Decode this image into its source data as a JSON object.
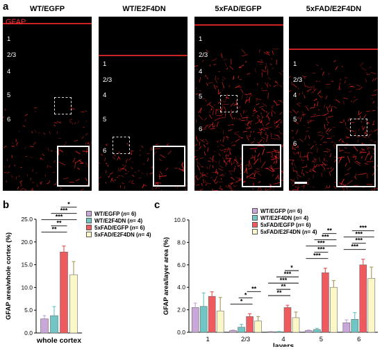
{
  "panel_labels": {
    "a": "a",
    "b": "b",
    "c": "c"
  },
  "micrographs": {
    "stain_label": "GFAP",
    "stain_color": "#ff2a2a",
    "panels": [
      {
        "title": "WT/EGFP",
        "layers": [
          "1",
          "2/3",
          "4",
          "5",
          "6"
        ]
      },
      {
        "title": "WT/E2F4DN",
        "layers": [
          "1",
          "2/3",
          "4",
          "5",
          "6"
        ]
      },
      {
        "title": "5xFAD/EGFP",
        "layers": [
          "1",
          "2/3",
          "4",
          "5",
          "6"
        ]
      },
      {
        "title": "5xFAD/E2F4DN",
        "layers": [
          "1",
          "2/3",
          "4",
          "5",
          "6"
        ]
      }
    ]
  },
  "legend": [
    {
      "label_prefix": "WT/EGFP (",
      "n_italic": "n",
      "label_suffix": " = 6)",
      "color": "#c9a7d9"
    },
    {
      "label_prefix": "WT/E2F4DN (",
      "n_italic": "n",
      "label_suffix": " = 4)",
      "color": "#6fc6c4"
    },
    {
      "label_prefix": "5xFAD/EGFP (",
      "n_italic": "n",
      "label_suffix": " = 6)",
      "color": "#ef5a5e"
    },
    {
      "label_prefix": "5xFAD/E2F4DN (",
      "n_italic": "n",
      "label_suffix": " = 4)",
      "color": "#fbf7c6"
    }
  ],
  "chart_data": [
    {
      "type": "bar",
      "panel": "b",
      "categories": [
        "whole cortex"
      ],
      "series": [
        {
          "name": "WT/EGFP",
          "values": [
            3.1
          ],
          "errors": [
            0.7
          ]
        },
        {
          "name": "WT/E2F4DN",
          "values": [
            3.8
          ],
          "errors": [
            2.0
          ]
        },
        {
          "name": "5xFAD/EGFP",
          "values": [
            17.8
          ],
          "errors": [
            1.3
          ]
        },
        {
          "name": "5xFAD/E2F4DN",
          "values": [
            12.8
          ],
          "errors": [
            2.9
          ]
        }
      ],
      "xlabel": "whole cortex",
      "ylabel": "GFAP area/whole cortex (%)",
      "ylim": [
        0,
        25
      ],
      "yticks": [
        "0.0",
        "5.0",
        "10.0",
        "15.0",
        "20.0",
        "25.0"
      ],
      "significance": [
        {
          "from": 0,
          "to": 2,
          "label": "**"
        },
        {
          "from": 1,
          "to": 2,
          "label": "**"
        },
        {
          "from": 0,
          "to": 3,
          "label": "***"
        },
        {
          "from": 1,
          "to": 3,
          "label": "***"
        },
        {
          "from": 2,
          "to": 3,
          "label": "*"
        }
      ]
    },
    {
      "type": "bar",
      "panel": "c",
      "categories": [
        "1",
        "2/3",
        "4",
        "5",
        "6"
      ],
      "series": [
        {
          "name": "WT/EGFP",
          "values": [
            2.2,
            0.15,
            0.05,
            0.15,
            0.85
          ],
          "errors": [
            0.4,
            0.05,
            0.03,
            0.05,
            0.25
          ]
        },
        {
          "name": "WT/E2F4DN",
          "values": [
            2.3,
            0.45,
            0.05,
            0.25,
            1.15
          ],
          "errors": [
            1.2,
            0.25,
            0.03,
            0.1,
            0.6
          ]
        },
        {
          "name": "5xFAD/EGFP",
          "values": [
            3.2,
            1.4,
            2.2,
            5.3,
            6.0
          ],
          "errors": [
            0.4,
            0.25,
            0.2,
            0.4,
            0.5
          ]
        },
        {
          "name": "5xFAD/E2F4DN",
          "values": [
            1.9,
            1.0,
            1.3,
            4.0,
            4.8
          ],
          "errors": [
            1.2,
            0.4,
            0.5,
            0.6,
            1.0
          ]
        }
      ],
      "xlabel": "layers",
      "ylabel": "GFAP area/layer area (%)",
      "ylim": [
        0,
        10
      ],
      "yticks": [
        "0.0",
        "2.0",
        "4.0",
        "6.0",
        "8.0",
        "10.0"
      ],
      "significance": [
        {
          "category": 1,
          "from": 0,
          "to": 2,
          "label": "*"
        },
        {
          "category": 1,
          "from": 1,
          "to": 2,
          "label": "*"
        },
        {
          "category": 1,
          "from": 2,
          "to": 3,
          "label": "**"
        },
        {
          "category": 2,
          "from": 0,
          "to": 2,
          "label": "**"
        },
        {
          "category": 2,
          "from": 1,
          "to": 2,
          "label": "**"
        },
        {
          "category": 2,
          "from": 0,
          "to": 3,
          "label": "***"
        },
        {
          "category": 2,
          "from": 1,
          "to": 3,
          "label": "***"
        },
        {
          "category": 2,
          "from": 2,
          "to": 3,
          "label": "*"
        },
        {
          "category": 3,
          "from": 0,
          "to": 2,
          "label": "***"
        },
        {
          "category": 3,
          "from": 1,
          "to": 2,
          "label": "***"
        },
        {
          "category": 3,
          "from": 0,
          "to": 3,
          "label": "***"
        },
        {
          "category": 3,
          "from": 1,
          "to": 3,
          "label": "***"
        },
        {
          "category": 3,
          "from": 2,
          "to": 3,
          "label": "**"
        },
        {
          "category": 4,
          "from": 0,
          "to": 2,
          "label": "***"
        },
        {
          "category": 4,
          "from": 1,
          "to": 2,
          "label": "***"
        },
        {
          "category": 4,
          "from": 0,
          "to": 3,
          "label": "***"
        },
        {
          "category": 4,
          "from": 1,
          "to": 3,
          "label": "***"
        }
      ]
    }
  ]
}
